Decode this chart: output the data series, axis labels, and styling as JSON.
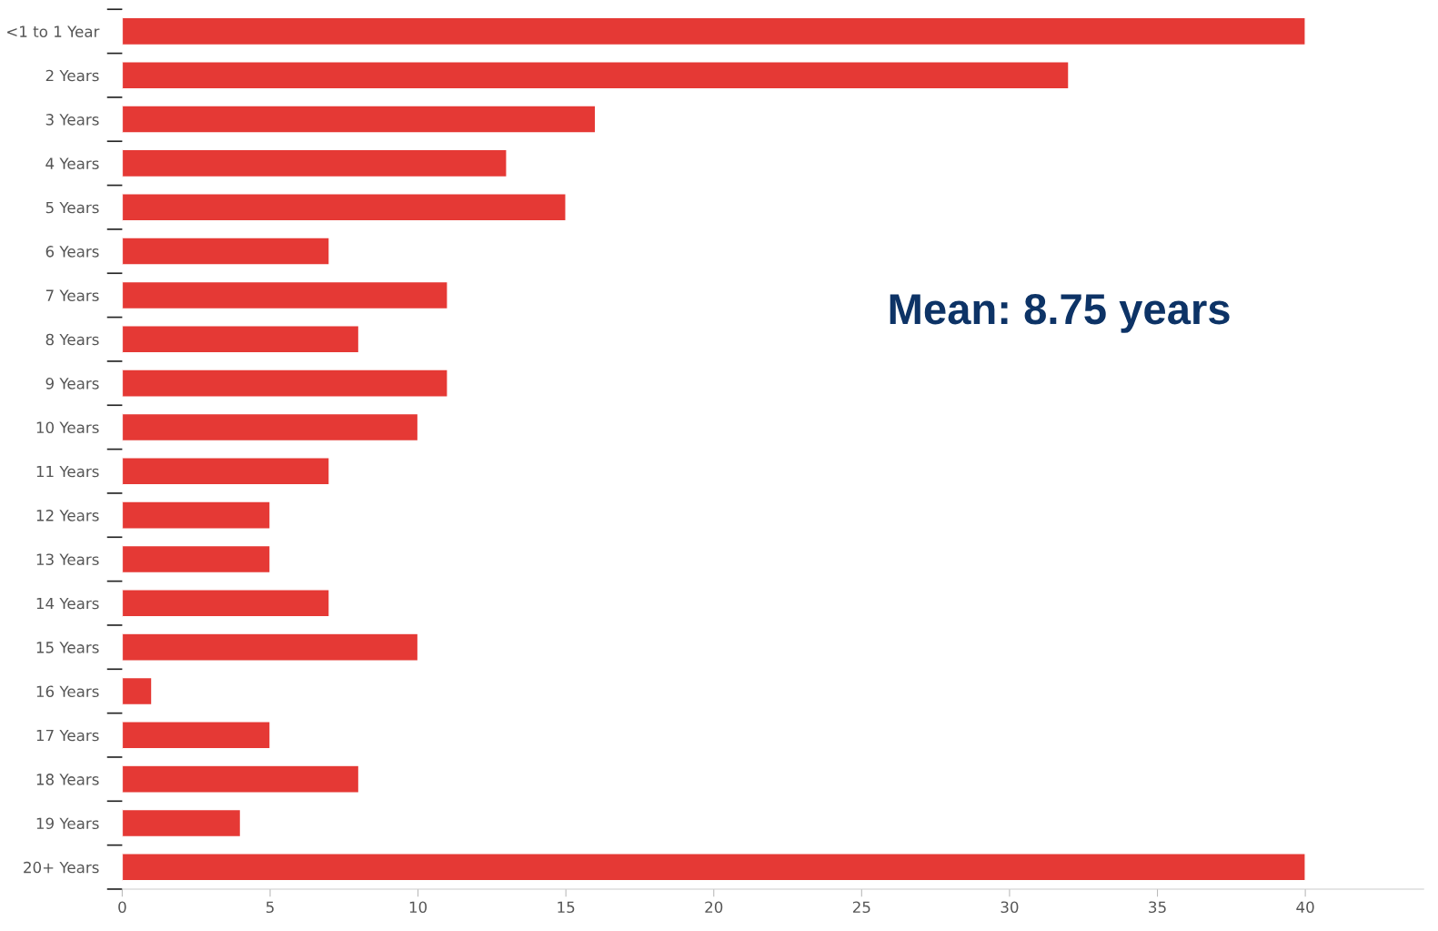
{
  "chart_data": {
    "type": "bar",
    "orientation": "horizontal",
    "categories": [
      "<1 to 1 Year",
      "2 Years",
      "3 Years",
      "4 Years",
      "5 Years",
      "6 Years",
      "7 Years",
      "8 Years",
      "9 Years",
      "10 Years",
      "11 Years",
      "12 Years",
      "13 Years",
      "14 Years",
      "15 Years",
      "16 Years",
      "17 Years",
      "18 Years",
      "19 Years",
      "20+ Years"
    ],
    "values": [
      40,
      32,
      16,
      13,
      15,
      7,
      11,
      8,
      11,
      10,
      7,
      5,
      5,
      7,
      10,
      1,
      5,
      8,
      4,
      40
    ],
    "color": "#e53935",
    "xlim": [
      0,
      44
    ],
    "xticks": [
      0,
      5,
      10,
      15,
      20,
      25,
      30,
      35,
      40
    ],
    "grid": false,
    "legend": false,
    "annotations": [
      "Mean: 8.75 years"
    ]
  }
}
